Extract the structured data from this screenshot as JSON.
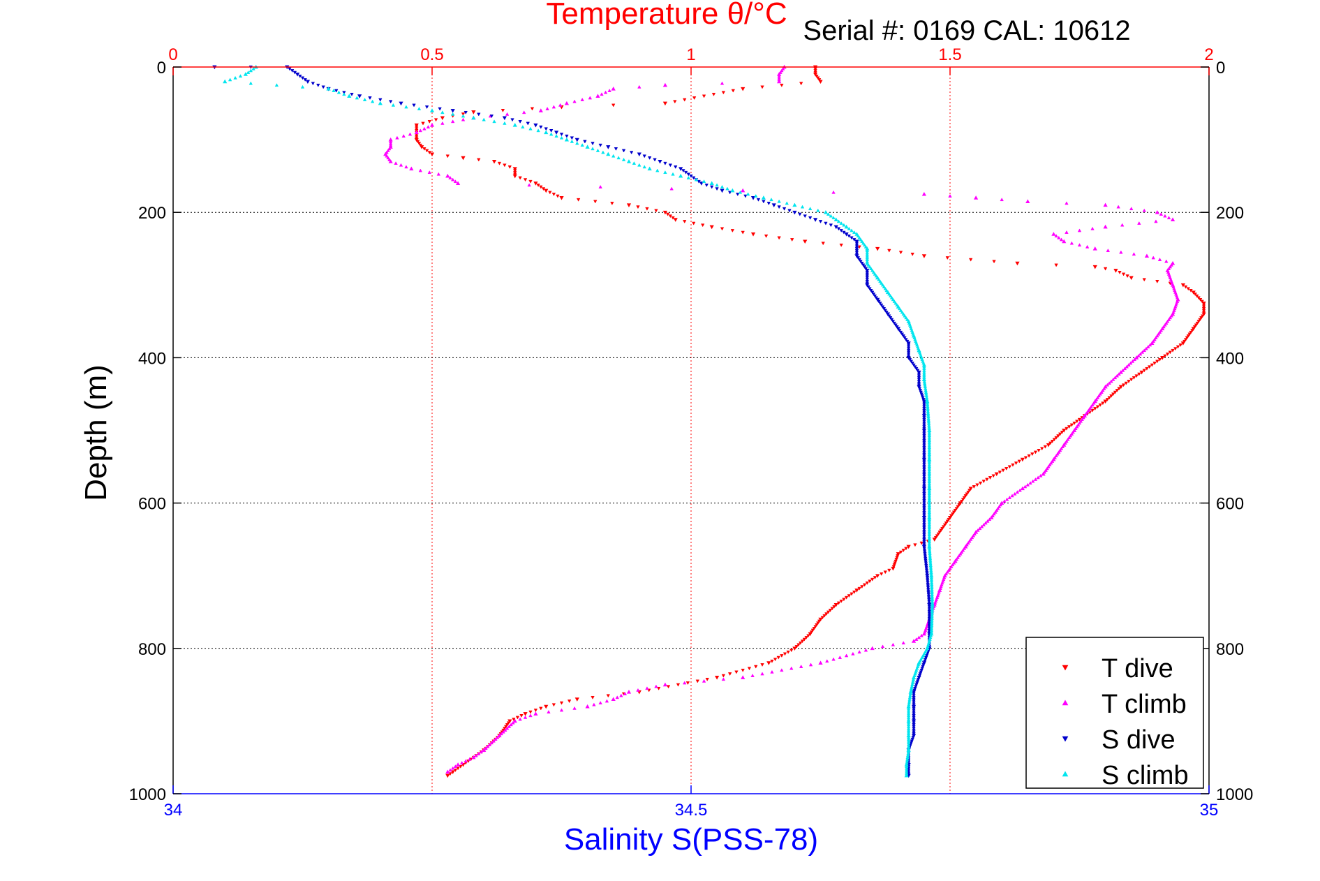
{
  "colors": {
    "temperature_axis": "#ff0000",
    "salinity_axis": "#0000ff",
    "grid_temperature": "#ff0000",
    "grid_depth": "#000000",
    "t_dive": "#ff0000",
    "t_climb": "#ff00ff",
    "s_dive": "#0000cc",
    "s_climb": "#00e5ee"
  },
  "chart_data": {
    "type": "scatter",
    "title": "Temperature θ/°C",
    "subtitle": "Serial #: 0169 CAL: 10612",
    "xlabel_top": "Temperature θ/°C",
    "xlabel_bottom": "Salinity S(PSS-78)",
    "ylabel": "Depth (m)",
    "top_axis": {
      "range": [
        0,
        2
      ],
      "ticks": [
        "0",
        "0.5",
        "1",
        "1.5",
        "2"
      ],
      "tick_values": [
        0,
        0.5,
        1,
        1.5,
        2
      ]
    },
    "bottom_axis": {
      "range": [
        34,
        35
      ],
      "ticks": [
        "34",
        "34.5",
        "35"
      ],
      "tick_values": [
        34,
        34.5,
        35
      ]
    },
    "y_axis": {
      "range": [
        0,
        1000
      ],
      "reversed": true,
      "ticks": [
        "0",
        "200",
        "400",
        "600",
        "800",
        "1000"
      ],
      "tick_values": [
        0,
        200,
        400,
        600,
        800,
        1000
      ]
    },
    "grid": true,
    "legend": "bottom-right",
    "series": [
      {
        "name": "T dive",
        "axis": "top",
        "marker": "triangle-down",
        "points": [
          [
            1.24,
            0
          ],
          [
            1.24,
            10
          ],
          [
            1.25,
            20
          ],
          [
            1.1,
            30
          ],
          [
            0.95,
            50
          ],
          [
            0.75,
            55
          ],
          [
            0.58,
            62
          ],
          [
            0.52,
            70
          ],
          [
            0.47,
            80
          ],
          [
            0.47,
            100
          ],
          [
            0.48,
            110
          ],
          [
            0.5,
            120
          ],
          [
            0.56,
            125
          ],
          [
            0.62,
            130
          ],
          [
            0.66,
            140
          ],
          [
            0.66,
            150
          ],
          [
            0.7,
            160
          ],
          [
            0.72,
            170
          ],
          [
            0.75,
            180
          ],
          [
            0.88,
            190
          ],
          [
            0.95,
            200
          ],
          [
            0.97,
            210
          ],
          [
            1.04,
            220
          ],
          [
            1.12,
            230
          ],
          [
            1.22,
            240
          ],
          [
            1.36,
            250
          ],
          [
            1.45,
            260
          ],
          [
            1.63,
            270
          ],
          [
            1.78,
            275
          ],
          [
            1.82,
            280
          ],
          [
            1.85,
            290
          ],
          [
            1.95,
            300
          ],
          [
            1.97,
            310
          ],
          [
            1.99,
            325
          ],
          [
            1.99,
            340
          ],
          [
            1.97,
            360
          ],
          [
            1.95,
            380
          ],
          [
            1.91,
            400
          ],
          [
            1.87,
            420
          ],
          [
            1.83,
            440
          ],
          [
            1.8,
            460
          ],
          [
            1.76,
            480
          ],
          [
            1.72,
            500
          ],
          [
            1.69,
            520
          ],
          [
            1.64,
            540
          ],
          [
            1.59,
            560
          ],
          [
            1.54,
            580
          ],
          [
            1.52,
            600
          ],
          [
            1.5,
            620
          ],
          [
            1.47,
            650
          ],
          [
            1.42,
            660
          ],
          [
            1.4,
            670
          ],
          [
            1.39,
            690
          ],
          [
            1.36,
            700
          ],
          [
            1.32,
            720
          ],
          [
            1.28,
            740
          ],
          [
            1.25,
            760
          ],
          [
            1.23,
            780
          ],
          [
            1.2,
            800
          ],
          [
            1.15,
            820
          ],
          [
            1.05,
            840
          ],
          [
            0.9,
            860
          ],
          [
            0.78,
            870
          ],
          [
            0.72,
            880
          ],
          [
            0.68,
            890
          ],
          [
            0.65,
            900
          ],
          [
            0.63,
            920
          ],
          [
            0.6,
            940
          ],
          [
            0.56,
            960
          ],
          [
            0.54,
            970
          ],
          [
            0.53,
            975
          ]
        ]
      },
      {
        "name": "T climb",
        "axis": "top",
        "marker": "triangle-up",
        "points": [
          [
            1.18,
            0
          ],
          [
            1.17,
            10
          ],
          [
            1.17,
            20
          ],
          [
            0.95,
            25
          ],
          [
            0.85,
            30
          ],
          [
            0.82,
            40
          ],
          [
            0.76,
            50
          ],
          [
            0.71,
            60
          ],
          [
            0.58,
            70
          ],
          [
            0.5,
            80
          ],
          [
            0.47,
            90
          ],
          [
            0.42,
            100
          ],
          [
            0.42,
            110
          ],
          [
            0.41,
            120
          ],
          [
            0.42,
            130
          ],
          [
            0.46,
            140
          ],
          [
            0.53,
            150
          ],
          [
            0.55,
            160
          ],
          [
            1.1,
            170
          ],
          [
            1.45,
            175
          ],
          [
            1.55,
            180
          ],
          [
            1.65,
            185
          ],
          [
            1.8,
            190
          ],
          [
            1.9,
            200
          ],
          [
            1.93,
            210
          ],
          [
            1.8,
            220
          ],
          [
            1.7,
            230
          ],
          [
            1.72,
            240
          ],
          [
            1.78,
            250
          ],
          [
            1.88,
            260
          ],
          [
            1.93,
            270
          ],
          [
            1.92,
            280
          ],
          [
            1.93,
            300
          ],
          [
            1.94,
            320
          ],
          [
            1.93,
            340
          ],
          [
            1.91,
            360
          ],
          [
            1.89,
            380
          ],
          [
            1.86,
            400
          ],
          [
            1.83,
            420
          ],
          [
            1.8,
            440
          ],
          [
            1.78,
            460
          ],
          [
            1.76,
            480
          ],
          [
            1.74,
            500
          ],
          [
            1.72,
            520
          ],
          [
            1.7,
            540
          ],
          [
            1.68,
            560
          ],
          [
            1.64,
            580
          ],
          [
            1.6,
            600
          ],
          [
            1.58,
            620
          ],
          [
            1.55,
            640
          ],
          [
            1.53,
            660
          ],
          [
            1.51,
            680
          ],
          [
            1.49,
            700
          ],
          [
            1.48,
            720
          ],
          [
            1.47,
            740
          ],
          [
            1.46,
            760
          ],
          [
            1.45,
            780
          ],
          [
            1.43,
            790
          ],
          [
            1.35,
            800
          ],
          [
            1.25,
            820
          ],
          [
            1.1,
            840
          ],
          [
            0.95,
            850
          ],
          [
            0.88,
            860
          ],
          [
            0.85,
            870
          ],
          [
            0.8,
            880
          ],
          [
            0.7,
            890
          ],
          [
            0.66,
            900
          ],
          [
            0.63,
            920
          ],
          [
            0.6,
            940
          ],
          [
            0.58,
            950
          ],
          [
            0.55,
            960
          ],
          [
            0.53,
            970
          ]
        ]
      },
      {
        "name": "S dive",
        "axis": "bottom",
        "marker": "triangle-down",
        "points": [
          [
            34.04,
            0
          ],
          [
            34.11,
            0
          ],
          [
            34.12,
            10
          ],
          [
            34.13,
            20
          ],
          [
            34.15,
            30
          ],
          [
            34.18,
            40
          ],
          [
            34.22,
            50
          ],
          [
            34.27,
            60
          ],
          [
            34.32,
            70
          ],
          [
            34.35,
            80
          ],
          [
            34.37,
            90
          ],
          [
            34.39,
            100
          ],
          [
            34.42,
            110
          ],
          [
            34.45,
            120
          ],
          [
            34.47,
            130
          ],
          [
            34.49,
            140
          ],
          [
            34.51,
            160
          ],
          [
            34.53,
            170
          ],
          [
            34.56,
            180
          ],
          [
            34.58,
            190
          ],
          [
            34.6,
            200
          ],
          [
            34.62,
            210
          ],
          [
            34.64,
            220
          ],
          [
            34.65,
            230
          ],
          [
            34.66,
            240
          ],
          [
            34.66,
            260
          ],
          [
            34.67,
            280
          ],
          [
            34.67,
            300
          ],
          [
            34.68,
            320
          ],
          [
            34.69,
            340
          ],
          [
            34.7,
            360
          ],
          [
            34.71,
            380
          ],
          [
            34.71,
            400
          ],
          [
            34.72,
            420
          ],
          [
            34.72,
            440
          ],
          [
            34.725,
            460
          ],
          [
            34.725,
            480
          ],
          [
            34.725,
            500
          ],
          [
            34.725,
            540
          ],
          [
            34.725,
            580
          ],
          [
            34.725,
            620
          ],
          [
            34.725,
            660
          ],
          [
            34.728,
            700
          ],
          [
            34.73,
            740
          ],
          [
            34.73,
            780
          ],
          [
            34.73,
            800
          ],
          [
            34.725,
            820
          ],
          [
            34.72,
            840
          ],
          [
            34.715,
            860
          ],
          [
            34.715,
            880
          ],
          [
            34.715,
            900
          ],
          [
            34.715,
            920
          ],
          [
            34.71,
            940
          ],
          [
            34.71,
            960
          ],
          [
            34.71,
            975
          ]
        ]
      },
      {
        "name": "S climb",
        "axis": "bottom",
        "marker": "triangle-up",
        "points": [
          [
            34.08,
            0
          ],
          [
            34.07,
            10
          ],
          [
            34.05,
            20
          ],
          [
            34.15,
            30
          ],
          [
            34.17,
            40
          ],
          [
            34.2,
            50
          ],
          [
            34.25,
            60
          ],
          [
            34.29,
            70
          ],
          [
            34.33,
            80
          ],
          [
            34.36,
            90
          ],
          [
            34.38,
            100
          ],
          [
            34.4,
            110
          ],
          [
            34.42,
            120
          ],
          [
            34.44,
            130
          ],
          [
            34.46,
            140
          ],
          [
            34.49,
            150
          ],
          [
            34.52,
            160
          ],
          [
            34.54,
            170
          ],
          [
            34.57,
            180
          ],
          [
            34.6,
            190
          ],
          [
            34.63,
            200
          ],
          [
            34.64,
            210
          ],
          [
            34.65,
            220
          ],
          [
            34.66,
            230
          ],
          [
            34.67,
            250
          ],
          [
            34.67,
            270
          ],
          [
            34.68,
            290
          ],
          [
            34.69,
            310
          ],
          [
            34.7,
            330
          ],
          [
            34.71,
            350
          ],
          [
            34.715,
            370
          ],
          [
            34.72,
            390
          ],
          [
            34.725,
            410
          ],
          [
            34.725,
            430
          ],
          [
            34.728,
            460
          ],
          [
            34.73,
            500
          ],
          [
            34.73,
            540
          ],
          [
            34.73,
            580
          ],
          [
            34.73,
            620
          ],
          [
            34.73,
            660
          ],
          [
            34.732,
            700
          ],
          [
            34.733,
            740
          ],
          [
            34.732,
            780
          ],
          [
            34.728,
            800
          ],
          [
            34.72,
            820
          ],
          [
            34.715,
            840
          ],
          [
            34.712,
            860
          ],
          [
            34.71,
            880
          ],
          [
            34.71,
            900
          ],
          [
            34.71,
            920
          ],
          [
            34.71,
            940
          ],
          [
            34.708,
            960
          ],
          [
            34.708,
            975
          ]
        ]
      }
    ]
  }
}
